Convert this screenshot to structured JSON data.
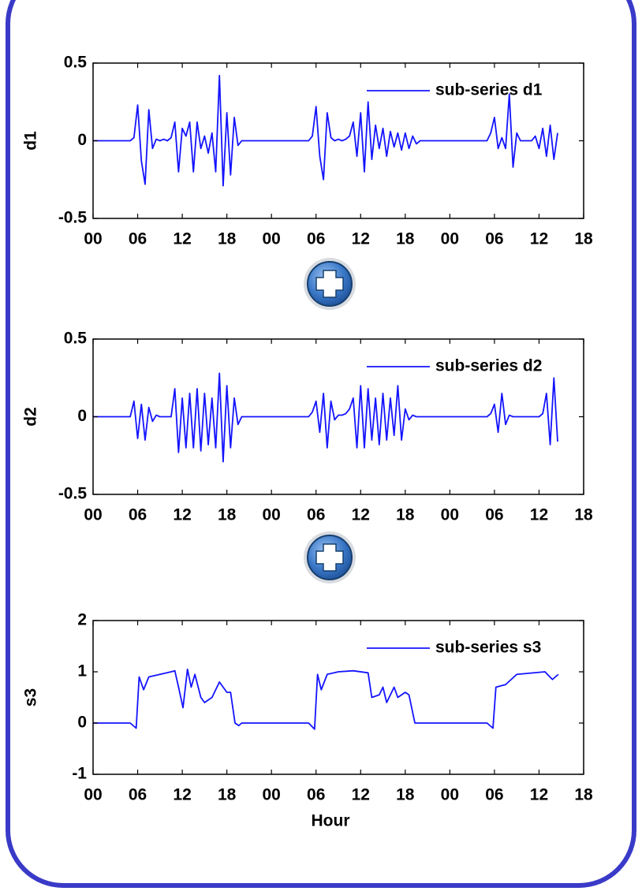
{
  "chart_data": [
    {
      "type": "line",
      "ylabel": "d1",
      "legend": "upper right",
      "x": [
        0,
        5,
        5.5,
        6,
        6.5,
        7,
        7.5,
        8,
        8.5,
        9,
        9.5,
        10,
        10.5,
        11,
        11.5,
        12,
        12.5,
        13,
        13.5,
        14,
        14.5,
        15,
        15.5,
        16,
        16.5,
        17,
        17.5,
        18,
        18.5,
        19,
        19.5,
        20,
        29,
        29.5,
        30,
        30.5,
        31,
        31.5,
        32,
        32.5,
        33,
        33.5,
        34,
        34.5,
        35,
        35.5,
        36,
        36.5,
        37,
        37.5,
        38,
        38.5,
        39,
        39.5,
        40,
        40.5,
        41,
        41.5,
        42,
        42.5,
        43,
        43.5,
        44,
        53,
        53.5,
        54,
        54.5,
        55,
        55.5,
        56,
        56.5,
        57,
        57.5,
        59,
        59.5,
        60,
        60.5,
        61,
        61.5,
        62,
        62.5
      ],
      "series": [
        {
          "name": "sub-series d1",
          "color": "#1414ff",
          "values": [
            0,
            0,
            0.02,
            0.23,
            -0.13,
            -0.28,
            0.2,
            -0.05,
            0.01,
            0,
            0.01,
            0,
            0.02,
            0.12,
            -0.2,
            0.08,
            0.03,
            0.12,
            -0.2,
            0.12,
            -0.05,
            0.03,
            -0.08,
            0.05,
            -0.2,
            0.42,
            -0.29,
            0.18,
            -0.22,
            0.15,
            -0.03,
            0,
            0,
            0.03,
            0.22,
            -0.1,
            -0.25,
            0.18,
            0.02,
            0,
            0.01,
            0,
            0.01,
            0.03,
            0.12,
            -0.1,
            0.18,
            -0.2,
            0.25,
            -0.12,
            0.1,
            -0.05,
            0.08,
            -0.1,
            0.06,
            -0.04,
            0.05,
            -0.06,
            0.05,
            -0.05,
            0.03,
            -0.02,
            0,
            0,
            0.05,
            0.15,
            -0.05,
            0.02,
            -0.05,
            0.3,
            -0.17,
            0.05,
            0,
            0,
            0.03,
            -0.05,
            0.08,
            -0.1,
            0.1,
            -0.12,
            0.05
          ]
        }
      ],
      "xlim": [
        0,
        66
      ],
      "xticks": [
        {
          "value": 0,
          "label": "00"
        },
        {
          "value": 6,
          "label": "06"
        },
        {
          "value": 12,
          "label": "12"
        },
        {
          "value": 18,
          "label": "18"
        },
        {
          "value": 24,
          "label": "00"
        },
        {
          "value": 30,
          "label": "06"
        },
        {
          "value": 36,
          "label": "12"
        },
        {
          "value": 42,
          "label": "18"
        },
        {
          "value": 48,
          "label": "00"
        },
        {
          "value": 54,
          "label": "06"
        },
        {
          "value": 60,
          "label": "12"
        },
        {
          "value": 66,
          "label": "18"
        }
      ],
      "ylim": [
        -0.5,
        0.5
      ],
      "yticks": [
        -0.5,
        0,
        0.5
      ]
    },
    {
      "type": "line",
      "ylabel": "d2",
      "legend": "upper right",
      "x": [
        0,
        5,
        5.5,
        6,
        6.5,
        7,
        7.5,
        8,
        8.5,
        9,
        10.5,
        11,
        11.5,
        12,
        12.5,
        13,
        13.5,
        14,
        14.5,
        15,
        15.5,
        16,
        16.5,
        17,
        17.5,
        18,
        18.5,
        19,
        19.5,
        20,
        29,
        29.5,
        30,
        30.5,
        31,
        31.5,
        32,
        32.5,
        33,
        33.5,
        34,
        34.5,
        35,
        35.5,
        36,
        36.5,
        37,
        37.5,
        38,
        38.5,
        39,
        39.5,
        40,
        40.5,
        41,
        41.5,
        42,
        42.5,
        43,
        43.5,
        53,
        53.5,
        54,
        54.5,
        55,
        55.5,
        56,
        56.5,
        60,
        60.5,
        61,
        61.5,
        62,
        62.5
      ],
      "series": [
        {
          "name": "sub-series d2",
          "color": "#1414ff",
          "values": [
            0,
            0,
            0.1,
            -0.14,
            0.08,
            -0.15,
            0.06,
            -0.03,
            0.01,
            0,
            0,
            0.18,
            -0.23,
            0.12,
            -0.2,
            0.15,
            -0.2,
            0.18,
            -0.22,
            0.15,
            -0.18,
            0.12,
            -0.2,
            0.28,
            -0.29,
            0.2,
            -0.2,
            0.12,
            -0.05,
            0,
            0,
            0.03,
            0.1,
            -0.1,
            0.15,
            -0.2,
            0.1,
            -0.02,
            0.01,
            0.01,
            0.02,
            0.05,
            0.12,
            -0.2,
            0.2,
            -0.2,
            0.18,
            -0.15,
            0.12,
            -0.18,
            0.15,
            -0.15,
            0.12,
            -0.12,
            0.2,
            -0.15,
            0.05,
            -0.02,
            0.01,
            0,
            0,
            0.02,
            0.08,
            -0.1,
            0.15,
            -0.05,
            0.01,
            0,
            0,
            0.02,
            0.15,
            -0.18,
            0.25,
            -0.16
          ]
        }
      ],
      "xlim": [
        0,
        66
      ],
      "xticks": [
        {
          "value": 0,
          "label": "00"
        },
        {
          "value": 6,
          "label": "06"
        },
        {
          "value": 12,
          "label": "12"
        },
        {
          "value": 18,
          "label": "18"
        },
        {
          "value": 24,
          "label": "00"
        },
        {
          "value": 30,
          "label": "06"
        },
        {
          "value": 36,
          "label": "12"
        },
        {
          "value": 42,
          "label": "18"
        },
        {
          "value": 48,
          "label": "00"
        },
        {
          "value": 54,
          "label": "06"
        },
        {
          "value": 60,
          "label": "12"
        },
        {
          "value": 66,
          "label": "18"
        }
      ],
      "ylim": [
        -0.5,
        0.5
      ],
      "yticks": [
        -0.5,
        0,
        0.5
      ]
    },
    {
      "type": "line",
      "ylabel": "s3",
      "xlabel": "Hour",
      "legend": "upper right",
      "x": [
        0,
        5,
        5.8,
        6.2,
        6.8,
        7.5,
        9,
        10.5,
        11,
        11.5,
        12.1,
        12.7,
        13.2,
        13.7,
        14.5,
        15,
        16,
        17,
        18,
        18.5,
        19.1,
        19.6,
        20,
        29,
        29.8,
        30.2,
        30.7,
        31.5,
        33,
        35,
        37,
        37.5,
        38.5,
        39,
        39.5,
        40.5,
        41,
        42,
        42.5,
        43.3,
        53,
        53.8,
        54.2,
        55.5,
        57,
        60.8,
        61.8,
        62.6
      ],
      "series": [
        {
          "name": "sub-series s3",
          "color": "#1414ff",
          "values": [
            0,
            0,
            -0.1,
            0.9,
            0.65,
            0.9,
            0.95,
            1.0,
            1.02,
            0.7,
            0.3,
            1.05,
            0.7,
            0.95,
            0.5,
            0.4,
            0.5,
            0.8,
            0.6,
            0.6,
            0,
            -0.05,
            0,
            0,
            -0.12,
            0.95,
            0.65,
            0.95,
            1.0,
            1.02,
            0.98,
            0.5,
            0.55,
            0.7,
            0.4,
            0.7,
            0.5,
            0.6,
            0.55,
            0,
            0,
            -0.1,
            0.7,
            0.75,
            0.95,
            1.0,
            0.85,
            0.95
          ]
        }
      ],
      "xlim": [
        0,
        66
      ],
      "xticks": [
        {
          "value": 0,
          "label": "00"
        },
        {
          "value": 6,
          "label": "06"
        },
        {
          "value": 12,
          "label": "12"
        },
        {
          "value": 18,
          "label": "18"
        },
        {
          "value": 24,
          "label": "00"
        },
        {
          "value": 30,
          "label": "06"
        },
        {
          "value": 36,
          "label": "12"
        },
        {
          "value": 42,
          "label": "18"
        },
        {
          "value": 48,
          "label": "00"
        },
        {
          "value": 54,
          "label": "06"
        },
        {
          "value": 60,
          "label": "12"
        },
        {
          "value": 66,
          "label": "18"
        }
      ],
      "ylim": [
        -1,
        2
      ],
      "yticks": [
        -1,
        0,
        1,
        2
      ]
    }
  ]
}
